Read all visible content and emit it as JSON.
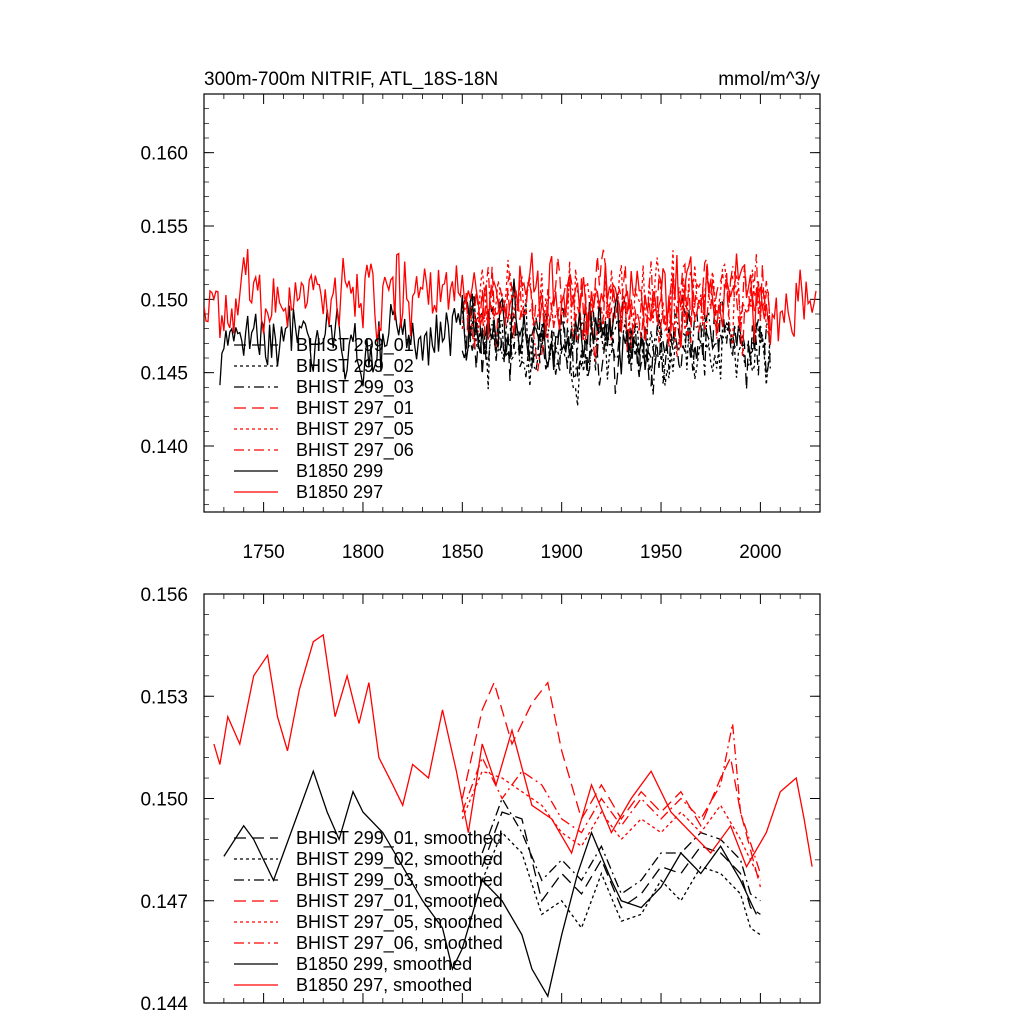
{
  "chart_data": [
    {
      "type": "line",
      "title_left": "300m-700m NITRIF, ATL_18S-18N",
      "title_right": "mmol/m^3/y",
      "xlabel": "",
      "ylabel": "",
      "xlim": [
        1720,
        2030
      ],
      "ylim": [
        0.1355,
        0.164
      ],
      "x_ticks": [
        1750,
        1800,
        1850,
        1900,
        1950,
        2000
      ],
      "x_tick_labels": [
        "1750",
        "1800",
        "1850",
        "1900",
        "1950",
        "2000"
      ],
      "y_ticks": [
        0.14,
        0.145,
        0.15,
        0.155,
        0.16
      ],
      "y_tick_labels": [
        "0.140",
        "0.145",
        "0.150",
        "0.155",
        "0.160"
      ],
      "legend_position": "lower-left",
      "series": [
        {
          "name": "BHIST 299_01",
          "color": "#000000",
          "dash": "long-dash",
          "start": 1850,
          "end": 2005,
          "base": 0.147,
          "amp": 0.006,
          "seed": 11
        },
        {
          "name": "BHIST 299_02",
          "color": "#000000",
          "dash": "dot",
          "start": 1850,
          "end": 2005,
          "base": 0.1468,
          "amp": 0.0058,
          "seed": 23
        },
        {
          "name": "BHIST 299_03",
          "color": "#000000",
          "dash": "dash-dot",
          "start": 1850,
          "end": 2005,
          "base": 0.1472,
          "amp": 0.0062,
          "seed": 37
        },
        {
          "name": "BHIST 297_01",
          "color": "#ff0000",
          "dash": "long-dash",
          "start": 1850,
          "end": 2005,
          "base": 0.1495,
          "amp": 0.006,
          "seed": 41
        },
        {
          "name": "BHIST 297_05",
          "color": "#ff0000",
          "dash": "dot",
          "start": 1850,
          "end": 2005,
          "base": 0.1497,
          "amp": 0.0062,
          "seed": 53
        },
        {
          "name": "BHIST 297_06",
          "color": "#ff0000",
          "dash": "dash-dot",
          "start": 1850,
          "end": 2005,
          "base": 0.1493,
          "amp": 0.0058,
          "seed": 67
        },
        {
          "name": "B1850 299",
          "color": "#000000",
          "dash": "solid",
          "start": 1728,
          "end": 1945,
          "base": 0.1475,
          "amp": 0.0055,
          "seed": 71
        },
        {
          "name": "B1850 297",
          "color": "#ff0000",
          "dash": "solid",
          "start": 1720,
          "end": 2028,
          "base": 0.1502,
          "amp": 0.0062,
          "seed": 83
        }
      ]
    },
    {
      "type": "line",
      "xlabel": "",
      "ylabel": "",
      "xlim": [
        1720,
        2030
      ],
      "ylim": [
        0.144,
        0.156
      ],
      "x_ticks": [
        1750,
        1800,
        1850,
        1900,
        1950,
        2000
      ],
      "y_ticks": [
        0.144,
        0.147,
        0.15,
        0.153,
        0.156
      ],
      "y_tick_labels": [
        "0.144",
        "0.147",
        "0.150",
        "0.153",
        "0.156"
      ],
      "legend_position": "lower-left",
      "series": [
        {
          "name": "BHIST 299_01, smoothed",
          "color": "#000000",
          "dash": "long-dash",
          "x": [
            1860,
            1870,
            1880,
            1890,
            1900,
            1910,
            1920,
            1930,
            1940,
            1950,
            1960,
            1970,
            1980,
            1990,
            1995,
            2000
          ],
          "y": [
            0.148,
            0.1496,
            0.1494,
            0.147,
            0.1478,
            0.1472,
            0.1482,
            0.1468,
            0.1472,
            0.148,
            0.1478,
            0.1486,
            0.1484,
            0.1478,
            0.1468,
            0.1466
          ]
        },
        {
          "name": "BHIST 299_02, smoothed",
          "color": "#000000",
          "dash": "dot",
          "x": [
            1860,
            1870,
            1880,
            1890,
            1900,
            1910,
            1920,
            1930,
            1940,
            1950,
            1960,
            1970,
            1980,
            1990,
            1995,
            2000
          ],
          "y": [
            0.1476,
            0.149,
            0.1484,
            0.1466,
            0.147,
            0.1462,
            0.1478,
            0.1464,
            0.1466,
            0.1476,
            0.147,
            0.148,
            0.1478,
            0.1472,
            0.1462,
            0.146
          ]
        },
        {
          "name": "BHIST 299_03, smoothed",
          "color": "#000000",
          "dash": "dash-dot",
          "x": [
            1860,
            1870,
            1880,
            1890,
            1900,
            1910,
            1920,
            1930,
            1940,
            1950,
            1960,
            1970,
            1980,
            1990,
            1995,
            2000
          ],
          "y": [
            0.1484,
            0.15,
            0.149,
            0.1476,
            0.1482,
            0.1476,
            0.1486,
            0.1472,
            0.1476,
            0.1484,
            0.1484,
            0.149,
            0.1488,
            0.1482,
            0.1472,
            0.147
          ]
        },
        {
          "name": "BHIST 297_01, smoothed",
          "color": "#ff0000",
          "dash": "long-dash",
          "x": [
            1850,
            1860,
            1866,
            1875,
            1885,
            1893,
            1900,
            1910,
            1920,
            1930,
            1940,
            1950,
            1960,
            1970,
            1980,
            1985,
            1990,
            2000
          ],
          "y": [
            0.15,
            0.1526,
            0.1534,
            0.1516,
            0.1528,
            0.1534,
            0.1514,
            0.1494,
            0.1504,
            0.1494,
            0.1502,
            0.1496,
            0.1502,
            0.1492,
            0.1506,
            0.1512,
            0.1496,
            0.1474
          ]
        },
        {
          "name": "BHIST 297_05, smoothed",
          "color": "#ff0000",
          "dash": "dot",
          "x": [
            1850,
            1860,
            1870,
            1880,
            1890,
            1900,
            1910,
            1920,
            1930,
            1940,
            1950,
            1960,
            1970,
            1980,
            1990,
            2000
          ],
          "y": [
            0.1494,
            0.1508,
            0.1506,
            0.1502,
            0.1498,
            0.149,
            0.1486,
            0.1496,
            0.1488,
            0.1494,
            0.149,
            0.1496,
            0.149,
            0.1498,
            0.1488,
            0.1476
          ]
        },
        {
          "name": "BHIST 297_06, smoothed",
          "color": "#ff0000",
          "dash": "dash-dot",
          "x": [
            1850,
            1860,
            1870,
            1880,
            1890,
            1900,
            1910,
            1920,
            1930,
            1940,
            1950,
            1960,
            1970,
            1980,
            1986,
            1990,
            2000
          ],
          "y": [
            0.1496,
            0.1512,
            0.15,
            0.1508,
            0.1504,
            0.1494,
            0.149,
            0.15,
            0.1492,
            0.15,
            0.1494,
            0.15,
            0.1494,
            0.1504,
            0.1522,
            0.1496,
            0.1478
          ]
        },
        {
          "name": "B1850 299, smoothed",
          "color": "#000000",
          "dash": "solid",
          "x": [
            1730,
            1740,
            1745,
            1755,
            1760,
            1770,
            1775,
            1782,
            1788,
            1795,
            1800,
            1810,
            1820,
            1830,
            1840,
            1845,
            1850,
            1860,
            1870,
            1880,
            1885,
            1893,
            1900,
            1908,
            1915,
            1925,
            1930,
            1940,
            1950,
            1960,
            1970,
            1980,
            1990,
            1998
          ],
          "y": [
            0.1483,
            0.1492,
            0.1488,
            0.1476,
            0.1484,
            0.15,
            0.1508,
            0.1496,
            0.1488,
            0.1502,
            0.1496,
            0.149,
            0.148,
            0.147,
            0.1462,
            0.145,
            0.1456,
            0.1476,
            0.147,
            0.146,
            0.145,
            0.1442,
            0.146,
            0.1478,
            0.149,
            0.1476,
            0.147,
            0.1468,
            0.1474,
            0.1484,
            0.1478,
            0.1486,
            0.1476,
            0.1466
          ]
        },
        {
          "name": "B1850 297, smoothed",
          "color": "#ff0000",
          "dash": "solid",
          "x": [
            1725,
            1728,
            1732,
            1738,
            1745,
            1752,
            1757,
            1762,
            1768,
            1775,
            1780,
            1786,
            1792,
            1798,
            1803,
            1808,
            1815,
            1820,
            1825,
            1833,
            1840,
            1847,
            1853,
            1860,
            1867,
            1875,
            1885,
            1895,
            1905,
            1915,
            1925,
            1935,
            1945,
            1955,
            1965,
            1975,
            1985,
            1993,
            2003,
            2010,
            2018,
            2022,
            2026
          ],
          "y": [
            0.1516,
            0.151,
            0.1524,
            0.1516,
            0.1536,
            0.1542,
            0.1524,
            0.1514,
            0.1532,
            0.1546,
            0.1548,
            0.1524,
            0.1536,
            0.1522,
            0.1534,
            0.1512,
            0.1504,
            0.1498,
            0.151,
            0.1506,
            0.1526,
            0.1508,
            0.149,
            0.1516,
            0.1504,
            0.152,
            0.1498,
            0.1494,
            0.1484,
            0.1504,
            0.149,
            0.15,
            0.1508,
            0.1496,
            0.149,
            0.1484,
            0.1492,
            0.148,
            0.149,
            0.1502,
            0.1506,
            0.1494,
            0.148
          ]
        }
      ]
    }
  ]
}
